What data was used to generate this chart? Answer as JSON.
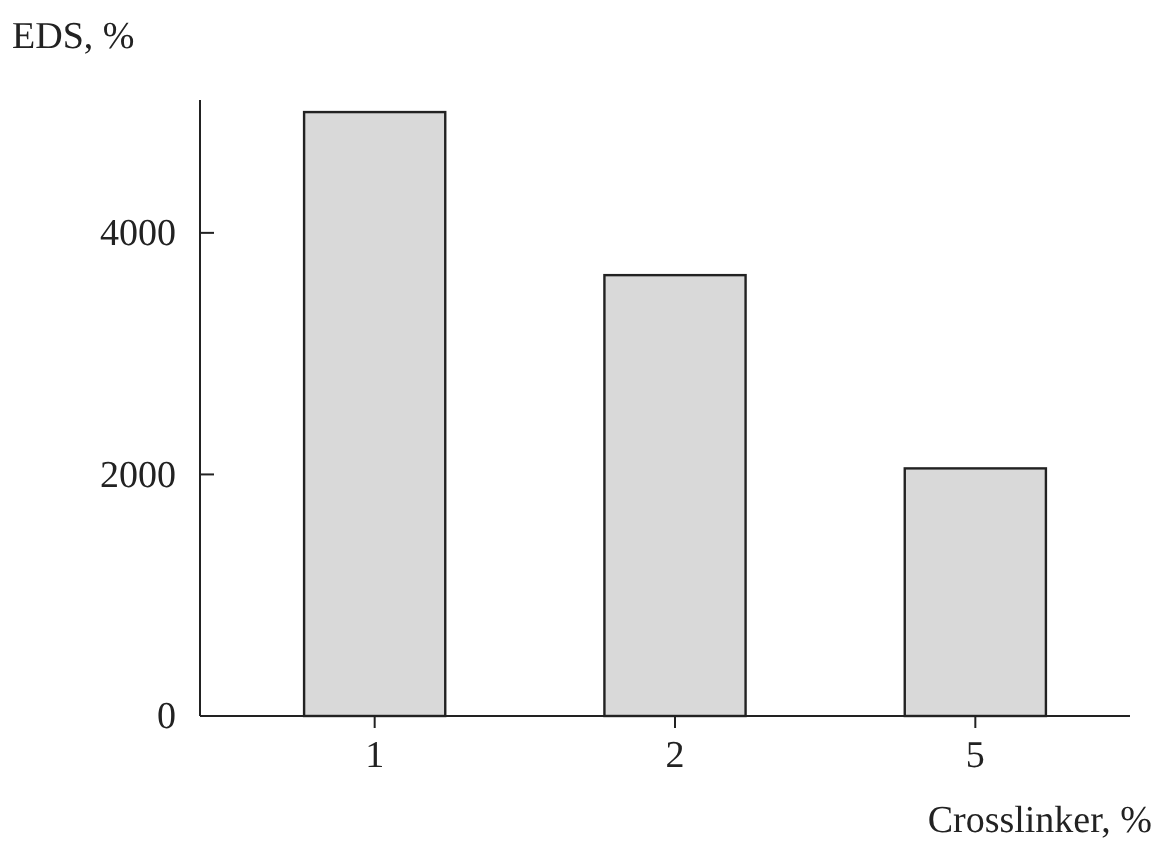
{
  "chart_data": {
    "type": "bar",
    "xlabel": "Crosslinker, %",
    "ylabel": "EDS, %",
    "categories": [
      "1",
      "2",
      "5"
    ],
    "values": [
      5000,
      3650,
      2050
    ],
    "color": "#d9d9d9",
    "ylim": [
      0,
      5100
    ],
    "yticks": [
      0,
      2000,
      4000
    ],
    "grid": false
  }
}
